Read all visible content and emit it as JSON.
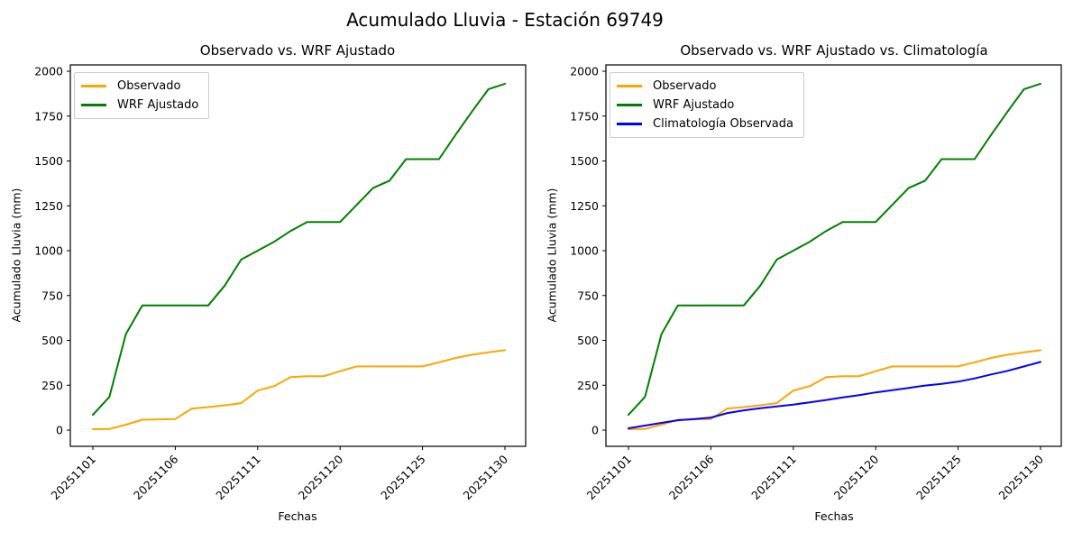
{
  "suptitle": "Acumulado Lluvia - Estación 69749",
  "colors": {
    "observado": "#FFA500",
    "wrf_ajustado": "#008000",
    "climatologia": "#0000FF",
    "axes": "#000000",
    "legend_border": "#cccccc"
  },
  "chart_data": [
    {
      "type": "line",
      "title": "Observado vs. WRF Ajustado",
      "xlabel": "Fechas",
      "ylabel": "Acumulado Lluvia (mm)",
      "n_points": 26,
      "ylim": [
        0,
        2000
      ],
      "y_ticks": [
        0,
        250,
        500,
        750,
        1000,
        1250,
        1500,
        1750,
        2000
      ],
      "x_tick_positions": [
        0,
        5,
        10,
        15,
        20,
        25
      ],
      "x_tick_labels": [
        "20251101",
        "20251106",
        "20251111",
        "20251120",
        "20251125",
        "20251130"
      ],
      "x_tick_rotation_deg": 45,
      "grid": false,
      "legend_position": "upper left",
      "series": [
        {
          "name": "Observado",
          "color": "#FFA500",
          "values": [
            5,
            6,
            30,
            58,
            60,
            62,
            120,
            128,
            138,
            150,
            220,
            245,
            295,
            300,
            300,
            328,
            355,
            355,
            355,
            355,
            355,
            378,
            402,
            420,
            433,
            445
          ]
        },
        {
          "name": "WRF Ajustado",
          "color": "#008000",
          "values": [
            85,
            185,
            535,
            695,
            695,
            695,
            695,
            695,
            805,
            950,
            1000,
            1050,
            1110,
            1160,
            1160,
            1160,
            1255,
            1350,
            1390,
            1510,
            1510,
            1510,
            1645,
            1775,
            1900,
            1930
          ]
        }
      ]
    },
    {
      "type": "line",
      "title": "Observado vs. WRF Ajustado vs. Climatología",
      "xlabel": "Fechas",
      "ylabel": "Acumulado Lluvia (mm)",
      "n_points": 26,
      "ylim": [
        0,
        2000
      ],
      "y_ticks": [
        0,
        250,
        500,
        750,
        1000,
        1250,
        1500,
        1750,
        2000
      ],
      "x_tick_positions": [
        0,
        5,
        10,
        15,
        20,
        25
      ],
      "x_tick_labels": [
        "20251101",
        "20251106",
        "20251111",
        "20251120",
        "20251125",
        "20251130"
      ],
      "x_tick_rotation_deg": 45,
      "grid": false,
      "legend_position": "upper left",
      "series": [
        {
          "name": "Observado",
          "color": "#FFA500",
          "values": [
            5,
            6,
            30,
            58,
            60,
            62,
            120,
            128,
            138,
            150,
            220,
            245,
            295,
            300,
            300,
            328,
            355,
            355,
            355,
            355,
            355,
            378,
            402,
            420,
            433,
            445
          ]
        },
        {
          "name": "WRF Ajustado",
          "color": "#008000",
          "values": [
            85,
            185,
            535,
            695,
            695,
            695,
            695,
            695,
            805,
            950,
            1000,
            1050,
            1110,
            1160,
            1160,
            1160,
            1255,
            1350,
            1390,
            1510,
            1510,
            1510,
            1645,
            1775,
            1900,
            1930
          ]
        },
        {
          "name": "Climatología Observada",
          "color": "#0000FF",
          "values": [
            10,
            25,
            40,
            55,
            62,
            70,
            95,
            110,
            122,
            132,
            142,
            155,
            168,
            182,
            195,
            210,
            222,
            235,
            248,
            258,
            270,
            288,
            310,
            330,
            355,
            380
          ]
        }
      ]
    }
  ]
}
